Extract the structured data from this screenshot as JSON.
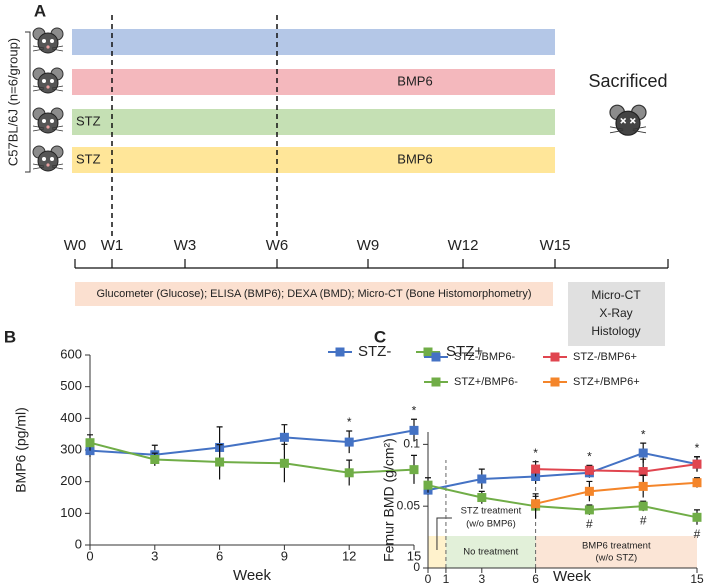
{
  "panels": [
    "A",
    "B",
    "C"
  ],
  "diagram": {
    "group_label": "C57BL/6J (n=6/group)",
    "bars": [
      {
        "color": "#b4c7e7"
      },
      {
        "color": "#f4b8bd",
        "label": "BMP6"
      },
      {
        "color": "#c5e0b4",
        "start_label": "STZ"
      },
      {
        "color": "#ffe699",
        "start_label": "STZ",
        "label": "BMP6"
      }
    ],
    "sacrificed": "Sacrificed",
    "week_labels": [
      "W0",
      "W1",
      "W3",
      "W6",
      "W9",
      "W12",
      "W15"
    ],
    "measurements": "Glucometer (Glucose); ELISA (BMP6); DEXA (BMD); Micro-CT (Bone Histomorphometry)",
    "final_box": [
      "Micro-CT",
      "X-Ray",
      "Histology"
    ]
  },
  "chart_data": [
    {
      "type": "line",
      "xlabel": "Week",
      "ylabel": "BMP6 (pg/ml)",
      "x": [
        0,
        3,
        6,
        9,
        12,
        15
      ],
      "series": [
        {
          "name": "STZ-",
          "color": "#4472c4",
          "values": [
            298,
            285,
            308,
            340,
            325,
            362
          ],
          "errors": [
            20,
            30,
            65,
            40,
            35,
            35
          ]
        },
        {
          "name": "STZ+",
          "color": "#70ad47",
          "values": [
            323,
            270,
            262,
            258,
            228,
            238
          ],
          "errors": [
            25,
            20,
            55,
            60,
            40,
            45
          ]
        }
      ],
      "xlim": [
        0,
        15
      ],
      "xticks": [
        0,
        3,
        6,
        9,
        12,
        15
      ],
      "ylim": [
        0,
        600
      ],
      "yticks": [
        0,
        100,
        200,
        300,
        400,
        500,
        600
      ],
      "annotations": [
        {
          "text": "*",
          "x": 12,
          "position": "above"
        },
        {
          "text": "*",
          "x": 15,
          "position": "above"
        }
      ]
    },
    {
      "type": "line",
      "xlabel": "Week",
      "ylabel": "Femur BMD (g/cm²)",
      "x": [
        0,
        3,
        6,
        9,
        12,
        15
      ],
      "series": [
        {
          "name": "STZ-/BMP6-",
          "color": "#4472c4",
          "values": [
            0.063,
            0.072,
            0.074,
            0.077,
            0.093,
            0.084
          ],
          "errors": [
            0.004,
            0.008,
            0.006,
            0.004,
            0.008,
            0.006
          ]
        },
        {
          "name": "STZ-/BMP6+",
          "color": "#e0454f",
          "values": [
            null,
            null,
            0.08,
            0.079,
            0.078,
            0.084
          ],
          "errors": [
            null,
            null,
            0.006,
            0.004,
            0.01,
            0.006
          ]
        },
        {
          "name": "STZ+/BMP6-",
          "color": "#70ad47",
          "values": [
            0.067,
            0.057,
            0.05,
            0.047,
            0.05,
            0.041
          ],
          "errors": [
            0.006,
            0.005,
            0.01,
            0.004,
            0.004,
            0.006
          ]
        },
        {
          "name": "STZ+/BMP6+",
          "color": "#f4852a",
          "values": [
            null,
            null,
            0.052,
            0.062,
            0.066,
            0.069
          ],
          "errors": [
            null,
            null,
            0.006,
            0.008,
            0.009,
            0.004
          ]
        }
      ],
      "xlim": [
        0,
        15
      ],
      "xticks": [
        0,
        1,
        3,
        6,
        15
      ],
      "ylim": [
        0,
        0.11
      ],
      "yticks": [
        0,
        0.05,
        0.1
      ],
      "regions": [
        {
          "x": [
            0,
            1
          ],
          "color": "#fff2cc",
          "label": [
            "STZ treatment",
            "(w/o BMP6)"
          ]
        },
        {
          "x": [
            1,
            6
          ],
          "color": "#e2f0d9",
          "label": [
            "No treatment"
          ]
        },
        {
          "x": [
            6,
            15
          ],
          "color": "#fbe5d6",
          "label": [
            "BMP6 treatment",
            "(w/o STZ)"
          ]
        }
      ],
      "annotations": [
        {
          "text": "*",
          "x": 6,
          "position": "above"
        },
        {
          "text": "*",
          "x": 9,
          "position": "above"
        },
        {
          "text": "*",
          "x": 12,
          "position": "above"
        },
        {
          "text": "*",
          "x": 15,
          "position": "above"
        },
        {
          "text": "#",
          "x": 9,
          "position": "below"
        },
        {
          "text": "#",
          "x": 12,
          "position": "below"
        },
        {
          "text": "#",
          "x": 15,
          "position": "below"
        }
      ]
    }
  ]
}
